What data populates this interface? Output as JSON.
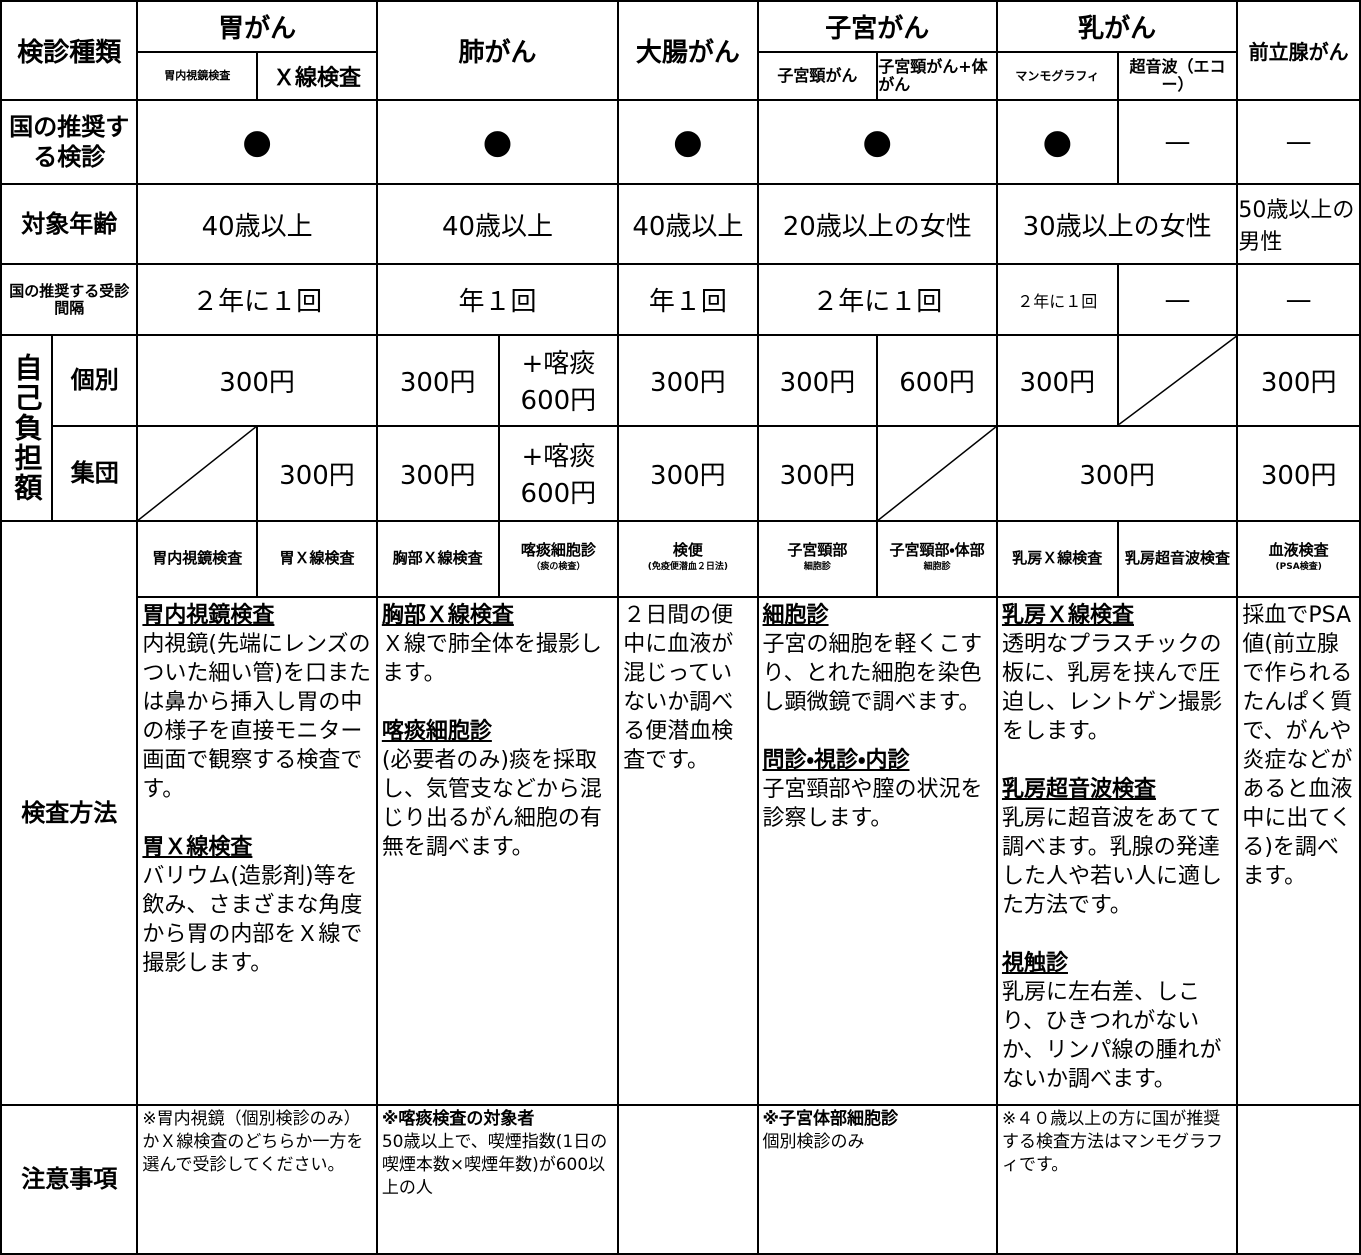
{
  "header": {
    "label": "検診種類",
    "cancers": [
      "胃がん",
      "肺がん",
      "大腸がん",
      "子宮がん",
      "乳がん",
      "前立腺がん"
    ],
    "subtypes": [
      "胃内視鏡検査",
      "Ｘ線検査",
      "子宮頸がん",
      "子宮頸がん+体がん",
      "マンモグラフィ",
      "超音波（エコー）"
    ]
  },
  "recommended": {
    "label": "国の推奨する検診",
    "cells": [
      "●",
      "●",
      "●",
      "●",
      "●",
      "—",
      "—"
    ]
  },
  "age": {
    "label": "対象年齢",
    "cells": [
      "40歳以上",
      "40歳以上",
      "40歳以上",
      "20歳以上の女性",
      "30歳以上の女性",
      "50歳以上の男性"
    ]
  },
  "interval": {
    "label": "国の推奨する受診間隔",
    "cells": [
      "２年に１回",
      "年１回",
      "年１回",
      "２年に１回",
      "２年に１回",
      "—",
      "—"
    ]
  },
  "cost": {
    "label": "自己負担額",
    "individual": {
      "label": "個別",
      "cells": [
        {
          "lines": [
            "300円"
          ]
        },
        {
          "lines": [
            "300円"
          ]
        },
        {
          "lines": [
            "+喀痰",
            "600円"
          ]
        },
        {
          "lines": [
            "300円"
          ]
        },
        {
          "lines": [
            "300円"
          ]
        },
        {
          "lines": [
            "600円"
          ]
        },
        {
          "lines": [
            "300円"
          ]
        },
        {
          "lines": [
            "300円"
          ]
        }
      ]
    },
    "group": {
      "label": "集団",
      "cells": [
        {
          "lines": [
            "300円"
          ]
        },
        {
          "lines": [
            "300円"
          ]
        },
        {
          "lines": [
            "+喀痰",
            "600円"
          ]
        },
        {
          "lines": [
            "300円"
          ]
        },
        {
          "lines": [
            "300円"
          ]
        },
        {
          "lines": [
            "300円"
          ]
        },
        {
          "lines": [
            "300円"
          ]
        }
      ]
    }
  },
  "method": {
    "label": "検査方法",
    "tests": [
      {
        "lines": [
          "胃内視鏡検査"
        ]
      },
      {
        "lines": [
          "胃Ｘ線検査"
        ]
      },
      {
        "lines": [
          "胸部Ｘ線検査"
        ]
      },
      {
        "lines": [
          "喀痰細胞診",
          "（痰の検査）"
        ]
      },
      {
        "lines": [
          "検便",
          "(免疫便潜血２日法)"
        ]
      },
      {
        "lines": [
          "子宮頸部",
          "細胞診"
        ]
      },
      {
        "lines": [
          "子宮頸部・体部",
          "細胞診"
        ]
      },
      {
        "lines": [
          "乳房Ｘ線検査"
        ]
      },
      {
        "lines": [
          "乳房超音波検査"
        ]
      },
      {
        "lines": [
          "血液検査",
          "(PSA検査)"
        ]
      }
    ],
    "descriptions": [
      [
        {
          "heading": "胃内視鏡検査",
          "text": "内視鏡(先端にレンズのついた細い管)を口または鼻から挿入し胃の中の様子を直接モニター画面で観察する検査です。"
        },
        {
          "heading": "胃Ｘ線検査",
          "text": "バリウム(造影剤)等を飲み、さまざまな角度から胃の内部をＸ線で撮影します。"
        }
      ],
      [
        {
          "heading": "胸部Ｘ線検査",
          "text": "Ｘ線で肺全体を撮影します。"
        },
        {
          "heading": "喀痰細胞診",
          "text": "(必要者のみ)痰を採取し、気管支などから混じり出るがん細胞の有無を調べます。"
        }
      ],
      [
        {
          "text": "２日間の便中に血液が混じっていないか調べる便潜血検査です。"
        }
      ],
      [
        {
          "heading": "細胞診",
          "text": "子宮の細胞を軽くこすり、とれた細胞を染色し顕微鏡で調べます。"
        },
        {
          "heading": "問診・視診・内診",
          "text": "子宮頸部や膣の状況を診察します。"
        }
      ],
      [
        {
          "heading": "乳房Ｘ線検査",
          "text": "透明なプラスチックの板に、乳房を挟んで圧迫し、レントゲン撮影をします。"
        },
        {
          "heading": "乳房超音波検査",
          "text": "乳房に超音波をあてて調べます。乳腺の発達した人や若い人に適した方法です。"
        },
        {
          "heading": "視触診",
          "text": "乳房に左右差、しこり、ひきつれがないか、リンパ線の腫れがないか調べます。"
        }
      ],
      [
        {
          "text": "採血でPSA値(前立腺で作られるたんぱく質で、がんや炎症などがあると血液中に出てくる)を調べます。"
        }
      ]
    ]
  },
  "notes": {
    "label": "注意事項",
    "cells": [
      {
        "text": "※胃内視鏡（個別検診のみ）かＸ線検査のどちらか一方を選んで受診してください。"
      },
      {
        "heading": "※喀痰検査の対象者",
        "text": "50歳以上で、喫煙指数(1日の喫煙本数×喫煙年数)が600以上の人"
      },
      {
        "heading": "※子宮体部細胞診",
        "text": "個別検診のみ"
      },
      {
        "text": "※４０歳以上の方に国が推奨する検査方法はマンモグラフィです。"
      }
    ]
  }
}
